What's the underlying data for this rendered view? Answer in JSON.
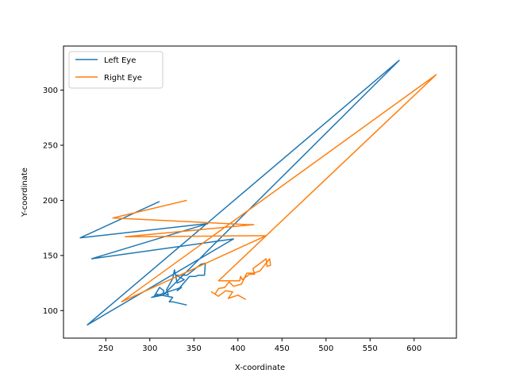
{
  "chart_data": {
    "type": "line",
    "title": "",
    "xlabel": "X-coordinate",
    "ylabel": "Y-coordinate",
    "xlim": [
      202,
      648
    ],
    "ylim": [
      75,
      340
    ],
    "x_ticks": [
      250,
      300,
      350,
      400,
      450,
      500,
      550,
      600
    ],
    "y_ticks": [
      100,
      150,
      200,
      250,
      300
    ],
    "grid": false,
    "legend_position": "top-left",
    "series": [
      {
        "name": "Left Eye",
        "color": "#1f77b4",
        "points": [
          [
            311,
            199
          ],
          [
            221,
            166
          ],
          [
            366,
            179
          ],
          [
            234,
            147
          ],
          [
            395,
            165
          ],
          [
            229,
            87
          ],
          [
            583,
            327
          ],
          [
            315,
            114
          ],
          [
            302,
            112
          ],
          [
            336,
            121
          ],
          [
            331,
            118
          ],
          [
            345,
            131
          ],
          [
            352,
            131
          ],
          [
            355,
            132
          ],
          [
            362,
            132
          ],
          [
            363,
            143
          ],
          [
            358,
            142
          ],
          [
            342,
            132
          ],
          [
            330,
            132
          ],
          [
            339,
            128
          ],
          [
            331,
            125
          ],
          [
            328,
            137
          ],
          [
            326,
            129
          ],
          [
            319,
            119
          ],
          [
            321,
            114
          ],
          [
            315,
            116
          ],
          [
            316,
            118
          ],
          [
            311,
            121
          ],
          [
            305,
            113
          ],
          [
            307,
            115
          ],
          [
            326,
            112
          ],
          [
            322,
            108
          ],
          [
            326,
            108
          ],
          [
            342,
            105
          ]
        ]
      },
      {
        "name": "Right Eye",
        "color": "#ff7f0e",
        "points": [
          [
            342,
            200
          ],
          [
            258,
            184
          ],
          [
            411,
            178
          ],
          [
            418,
            178
          ],
          [
            272,
            167
          ],
          [
            432,
            168
          ],
          [
            268,
            108
          ],
          [
            625,
            314
          ],
          [
            378,
            127
          ],
          [
            402,
            127
          ],
          [
            403,
            131
          ],
          [
            405,
            128
          ],
          [
            413,
            133
          ],
          [
            419,
            133
          ],
          [
            417,
            138
          ],
          [
            432,
            147
          ],
          [
            433,
            140
          ],
          [
            437,
            141
          ],
          [
            436,
            147
          ],
          [
            425,
            136
          ],
          [
            418,
            134
          ],
          [
            410,
            134
          ],
          [
            404,
            124
          ],
          [
            395,
            122
          ],
          [
            390,
            126
          ],
          [
            385,
            121
          ],
          [
            378,
            120
          ],
          [
            374,
            115
          ],
          [
            370,
            117
          ],
          [
            378,
            113
          ],
          [
            386,
            118
          ],
          [
            394,
            117
          ],
          [
            389,
            111
          ],
          [
            400,
            114
          ],
          [
            409,
            110
          ]
        ]
      }
    ]
  }
}
